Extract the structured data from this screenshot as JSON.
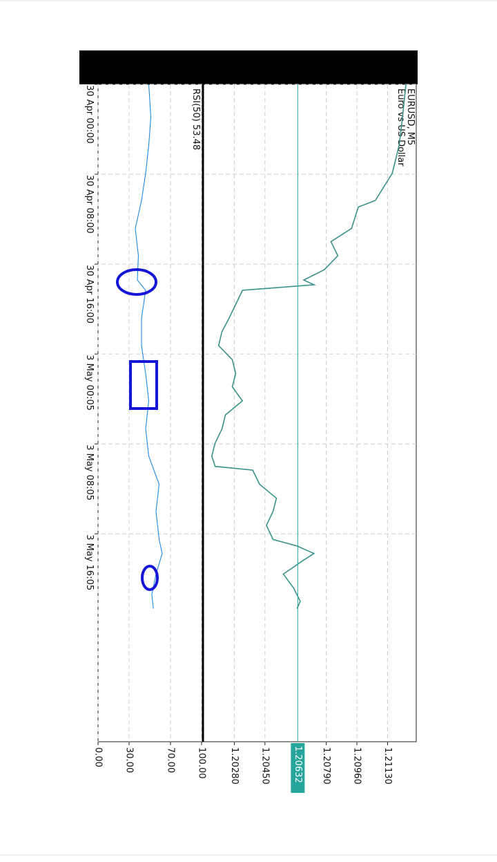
{
  "chart_data": [
    {
      "type": "line",
      "title": "EURUSD, M5",
      "subtitle": "Euro vs US Dollar",
      "x": [
        0,
        35,
        65,
        95,
        124,
        131,
        154,
        168,
        183,
        198,
        209,
        214,
        220,
        235,
        250,
        264,
        279,
        294,
        309,
        323,
        338,
        353,
        368,
        383,
        397,
        408,
        412,
        427,
        442,
        456,
        471,
        486,
        493,
        501,
        508,
        523,
        538,
        552,
        560
      ],
      "series": [
        {
          "color": "#3a9189",
          "values": [
            1.21232,
            1.21213,
            1.21194,
            1.21156,
            1.21062,
            1.20968,
            1.2093,
            1.20816,
            1.20854,
            1.20779,
            1.20665,
            1.20722,
            1.20325,
            1.20288,
            1.2025,
            1.20212,
            1.20193,
            1.20269,
            1.20288,
            1.20269,
            1.20325,
            1.20231,
            1.20212,
            1.20174,
            1.20155,
            1.20174,
            1.20382,
            1.2042,
            1.20514,
            1.20495,
            1.20458,
            1.20495,
            1.20628,
            1.20722,
            1.20665,
            1.20552,
            1.20609,
            1.20646,
            1.20628
          ]
        }
      ],
      "xlim": [
        0,
        702
      ],
      "xticks": [
        {
          "value": 0,
          "label": "30 Apr 00:00"
        },
        {
          "value": 96,
          "label": "30 Apr 08:00"
        },
        {
          "value": 192,
          "label": "30 Apr 16:00"
        },
        {
          "value": 288,
          "label": "3 May 00:05"
        },
        {
          "value": 384,
          "label": "3 May 08:05"
        },
        {
          "value": 480,
          "label": "3 May 16:05"
        }
      ],
      "ylim": [
        1.2011,
        1.21289
      ],
      "yticks": [
        {
          "value": 1.2028,
          "label": "1.20280"
        },
        {
          "value": 1.2045,
          "label": "1.20450"
        },
        {
          "value": 1.2079,
          "label": "1.20790"
        },
        {
          "value": 1.2096,
          "label": "1.20960"
        },
        {
          "value": 1.2113,
          "label": "1.21130"
        }
      ],
      "current_price": {
        "value": 1.20632,
        "label": "1.20632"
      },
      "grid": true
    },
    {
      "type": "line",
      "title": "RSI(50) 53.48",
      "x": [
        0,
        35,
        65,
        95,
        124,
        154,
        183,
        209,
        220,
        250,
        279,
        309,
        338,
        368,
        397,
        427,
        456,
        486,
        501,
        523,
        545,
        560
      ],
      "series": [
        {
          "color": "#1e88e5",
          "values": [
            49,
            51,
            49,
            46,
            42,
            36,
            39,
            38,
            46,
            42,
            42,
            46,
            49,
            46,
            49,
            59,
            56,
            59,
            62,
            56,
            52,
            53.48
          ]
        }
      ],
      "xlim": [
        0,
        702
      ],
      "ylim": [
        0,
        100
      ],
      "yticks": [
        {
          "value": 0,
          "label": "0.00"
        },
        {
          "value": 30,
          "label": "30.00"
        },
        {
          "value": 70,
          "label": "70.00"
        },
        {
          "value": 100,
          "label": "100.00"
        }
      ],
      "grid": true
    }
  ]
}
